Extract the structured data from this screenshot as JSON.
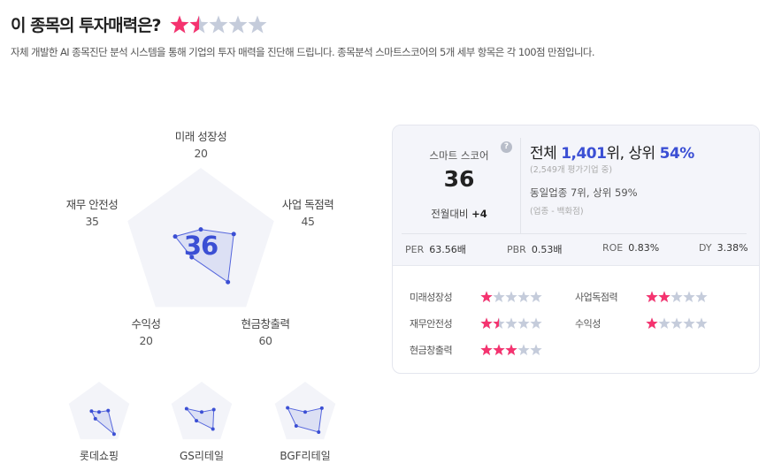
{
  "header": {
    "title": "이 종목의 투자매력은?",
    "rating": 1.5,
    "description": "자체 개발한 AI 종목진단 분석 시스템을 통해 기업의 투자 매력을 진단해 드립니다. 종목분석 스마트스코어의 5개 세부 항목은 각 100점 만점입니다."
  },
  "radar": {
    "center_score": "36",
    "max": 100,
    "axes": [
      {
        "label": "미래 성장성",
        "value": 20
      },
      {
        "label": "사업 독점력",
        "value": 45
      },
      {
        "label": "현금창출력",
        "value": 60
      },
      {
        "label": "수익성",
        "value": 20
      },
      {
        "label": "재무 안전성",
        "value": 35
      }
    ]
  },
  "card": {
    "score_label": "스마트 스코어",
    "score": "36",
    "mom_label": "전월대비",
    "mom_value": "+4",
    "help_icon": "?",
    "rank_prefix": "전체 ",
    "rank": "1,401",
    "rank_mid": "위, 상위 ",
    "rank_pct": "54%",
    "rank_note": "(2,549개 평가기업 중)",
    "industry": "동일업종 7위, 상위 59%",
    "industry_note": "(업종 - 백화점)",
    "metrics": [
      {
        "label": "PER",
        "value": "63.56배"
      },
      {
        "label": "PBR",
        "value": "0.53배"
      },
      {
        "label": "ROE",
        "value": "0.83%"
      },
      {
        "label": "DY",
        "value": "3.38%"
      }
    ],
    "details": [
      {
        "label": "미래성장성",
        "stars": 1
      },
      {
        "label": "사업독점력",
        "stars": 2
      },
      {
        "label": "재무안전성",
        "stars": 1.5
      },
      {
        "label": "수익성",
        "stars": 1
      },
      {
        "label": "현금창출력",
        "stars": 3
      }
    ]
  },
  "peers": [
    {
      "name": "롯데쇼핑",
      "values": [
        5,
        30,
        80,
        20,
        25
      ]
    },
    {
      "name": "GS리테일",
      "values": [
        5,
        40,
        60,
        28,
        50
      ]
    },
    {
      "name": "BGF리테일",
      "values": [
        5,
        55,
        72,
        48,
        58
      ]
    }
  ],
  "colors": {
    "accent": "#3b4fd4",
    "star_on": "#f5336f",
    "star_off": "#c5ccdb",
    "pentagon": "#f3f4f9"
  }
}
